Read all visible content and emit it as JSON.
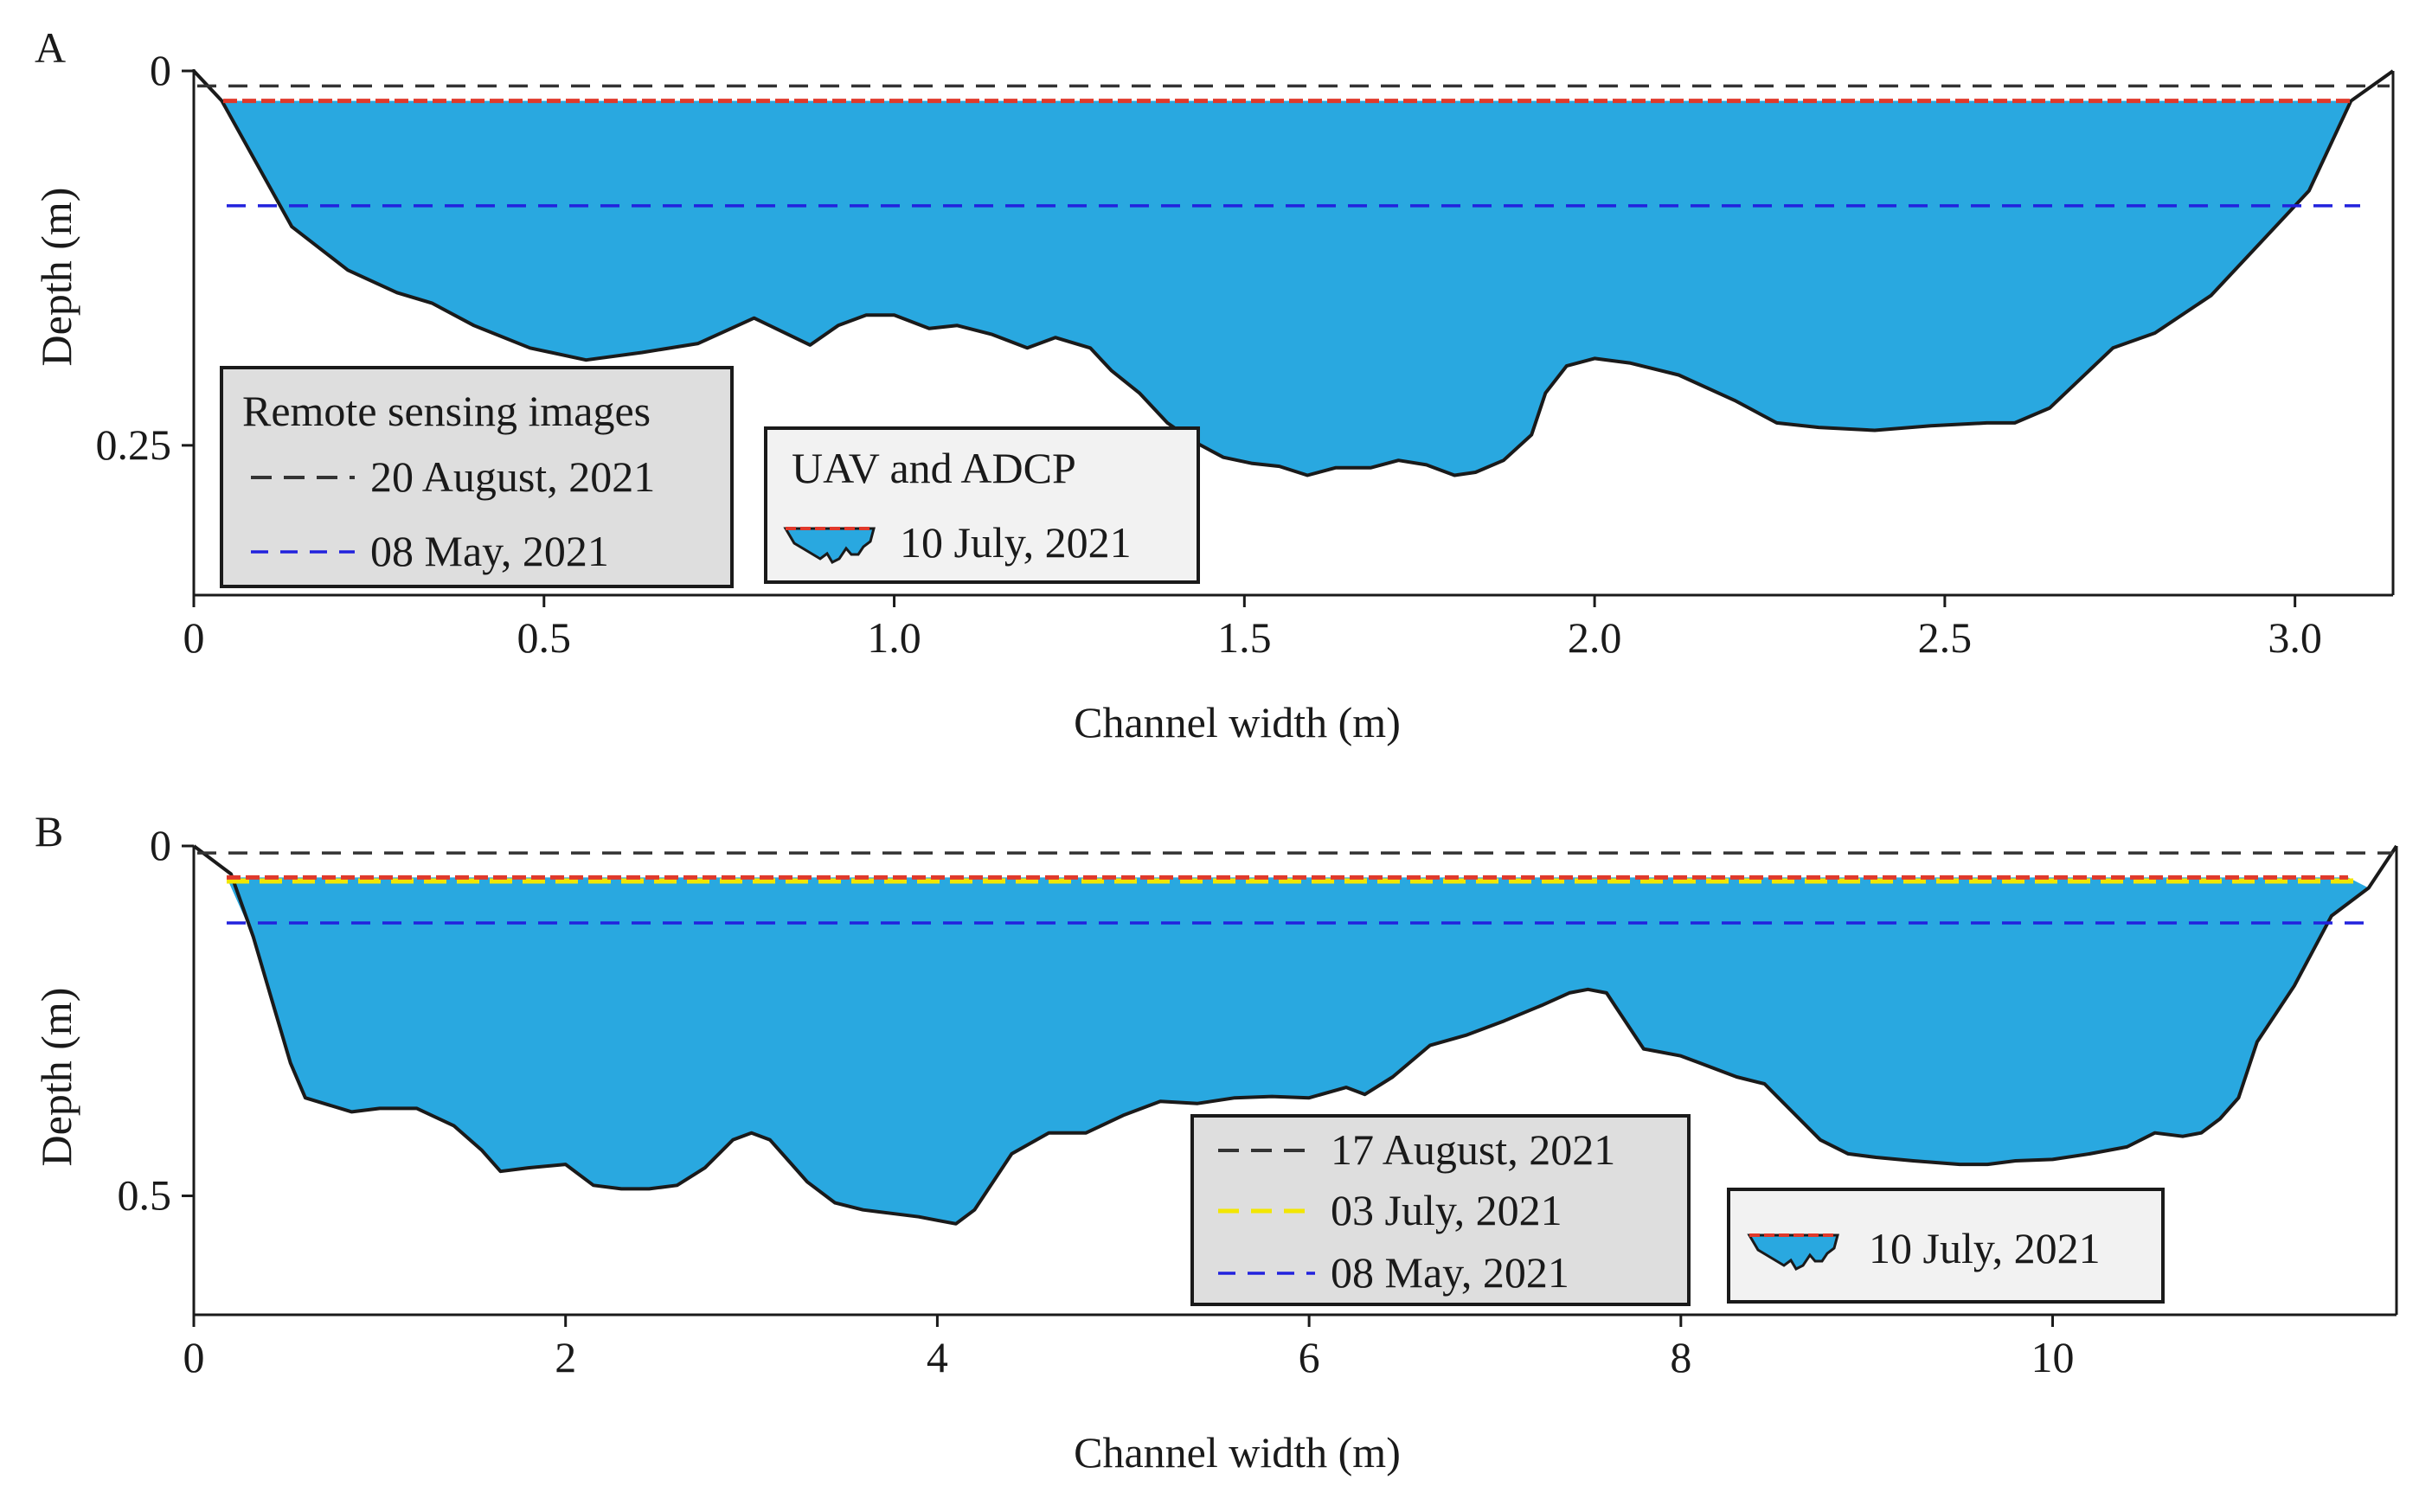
{
  "chart_data": [
    {
      "type": "area",
      "panel_label": "A",
      "xlabel": "Channel width (m)",
      "ylabel": "Depth (m)",
      "xlim": [
        0,
        3.14
      ],
      "ylim": [
        0.35,
        0
      ],
      "xticks": [
        0,
        0.5,
        1.0,
        1.5,
        2.0,
        2.5,
        3.0
      ],
      "xtick_labels": [
        "0",
        "0.5",
        "1.0",
        "1.5",
        "2.0",
        "2.5",
        "3.0"
      ],
      "yticks": [
        0,
        0.25
      ],
      "ytick_labels": [
        "0",
        "0.25"
      ],
      "bank_profile": {
        "x": [
          0,
          3.14
        ],
        "depth": [
          0,
          0
        ]
      },
      "surface_lines": [
        {
          "date": "20 August, 2021",
          "depth": 0.01,
          "color": "#333333",
          "source": "Remote sensing images"
        },
        {
          "date": "08 May, 2021",
          "depth": 0.09,
          "color": "#2222dd",
          "source": "Remote sensing images"
        }
      ],
      "water_section": {
        "date": "10 July, 2021",
        "source": "UAV and ADCP",
        "water_level": 0.02,
        "fill_color": "#29a8e0",
        "surface_color": "#e0392b",
        "x": [
          0,
          0.04,
          0.14,
          0.22,
          0.29,
          0.34,
          0.4,
          0.48,
          0.56,
          0.64,
          0.72,
          0.8,
          0.88,
          0.92,
          0.96,
          1.0,
          1.05,
          1.09,
          1.14,
          1.19,
          1.23,
          1.28,
          1.31,
          1.35,
          1.39,
          1.43,
          1.47,
          1.51,
          1.55,
          1.59,
          1.63,
          1.68,
          1.72,
          1.76,
          1.8,
          1.83,
          1.87,
          1.91,
          1.93,
          1.96,
          2.0,
          2.05,
          2.12,
          2.2,
          2.26,
          2.32,
          2.4,
          2.48,
          2.56,
          2.6,
          2.65,
          2.74,
          2.8,
          2.88,
          2.96,
          3.02,
          3.08,
          3.14
        ],
        "depth": [
          0,
          0.02,
          0.104,
          0.133,
          0.148,
          0.155,
          0.17,
          0.185,
          0.193,
          0.188,
          0.182,
          0.165,
          0.183,
          0.17,
          0.163,
          0.163,
          0.172,
          0.17,
          0.176,
          0.185,
          0.178,
          0.185,
          0.2,
          0.215,
          0.235,
          0.248,
          0.258,
          0.262,
          0.264,
          0.27,
          0.265,
          0.265,
          0.26,
          0.263,
          0.27,
          0.268,
          0.26,
          0.243,
          0.215,
          0.197,
          0.192,
          0.195,
          0.203,
          0.22,
          0.235,
          0.238,
          0.24,
          0.237,
          0.235,
          0.235,
          0.225,
          0.185,
          0.175,
          0.15,
          0.11,
          0.08,
          0.02,
          0
        ]
      }
    },
    {
      "type": "area",
      "panel_label": "B",
      "xlabel": "Channel width (m)",
      "ylabel": "Depth (m)",
      "xlim": [
        0,
        11.85
      ],
      "ylim": [
        0.67,
        0
      ],
      "xticks": [
        0,
        2,
        4,
        6,
        8,
        10
      ],
      "xtick_labels": [
        "0",
        "2",
        "4",
        "6",
        "8",
        "10"
      ],
      "yticks": [
        0,
        0.5
      ],
      "ytick_labels": [
        "0",
        "0.5"
      ],
      "surface_lines": [
        {
          "date": "17 August, 2021",
          "depth": 0.01,
          "color": "#333333",
          "source": "Remote sensing images"
        },
        {
          "date": "03 July, 2021",
          "depth": 0.05,
          "color": "#f2e600",
          "source": "Remote sensing images"
        },
        {
          "date": "08 May, 2021",
          "depth": 0.11,
          "color": "#2222dd",
          "source": "Remote sensing images"
        }
      ],
      "water_section": {
        "date": "10 July, 2021",
        "source": "UAV and ADCP",
        "water_level": 0.045,
        "fill_color": "#29a8e0",
        "surface_color": "#e0392b",
        "x": [
          0,
          0.2,
          0.32,
          0.42,
          0.52,
          0.6,
          0.85,
          1.0,
          1.2,
          1.4,
          1.55,
          1.65,
          1.8,
          2.0,
          2.15,
          2.3,
          2.45,
          2.6,
          2.75,
          2.9,
          3.0,
          3.1,
          3.2,
          3.3,
          3.45,
          3.6,
          3.75,
          3.9,
          4.0,
          4.1,
          4.2,
          4.3,
          4.4,
          4.6,
          4.8,
          5.0,
          5.2,
          5.4,
          5.6,
          5.8,
          6.0,
          6.2,
          6.3,
          6.45,
          6.65,
          6.85,
          7.05,
          7.25,
          7.4,
          7.5,
          7.6,
          7.65,
          7.8,
          8.0,
          8.1,
          8.3,
          8.45,
          8.6,
          8.75,
          8.9,
          9.05,
          9.25,
          9.5,
          9.65,
          9.8,
          10.0,
          10.2,
          10.4,
          10.55,
          10.7,
          10.8,
          10.9,
          11.0,
          11.1,
          11.3,
          11.5,
          11.7,
          11.85
        ],
        "depth": [
          0,
          0.04,
          0.13,
          0.22,
          0.31,
          0.36,
          0.38,
          0.375,
          0.375,
          0.4,
          0.435,
          0.465,
          0.46,
          0.455,
          0.485,
          0.49,
          0.49,
          0.485,
          0.46,
          0.42,
          0.41,
          0.42,
          0.45,
          0.48,
          0.51,
          0.52,
          0.525,
          0.53,
          0.535,
          0.54,
          0.52,
          0.48,
          0.44,
          0.41,
          0.41,
          0.385,
          0.365,
          0.368,
          0.36,
          0.358,
          0.36,
          0.345,
          0.355,
          0.33,
          0.285,
          0.27,
          0.25,
          0.228,
          0.21,
          0.205,
          0.21,
          0.23,
          0.29,
          0.3,
          0.31,
          0.33,
          0.34,
          0.38,
          0.42,
          0.44,
          0.445,
          0.45,
          0.455,
          0.455,
          0.45,
          0.448,
          0.44,
          0.43,
          0.41,
          0.415,
          0.41,
          0.39,
          0.36,
          0.28,
          0.2,
          0.1,
          0.06,
          0
        ]
      }
    }
  ],
  "legends": {
    "a_remote": {
      "title": "Remote sensing images",
      "entries": [
        "20 August, 2021",
        "08 May, 2021"
      ]
    },
    "a_uav": {
      "title": "UAV and ADCP",
      "entries": [
        "10 July, 2021"
      ]
    },
    "b_remote": {
      "entries": [
        "17 August, 2021",
        "03 July, 2021",
        "08 May, 2021"
      ]
    },
    "b_uav": {
      "entries": [
        "10 July, 2021"
      ]
    }
  },
  "colors": {
    "water": "#29a8e0",
    "outline": "#1a1a1a",
    "surface_red": "#e0392b",
    "legend_gray": "#dedede",
    "legend_light": "#f2f2f2"
  }
}
